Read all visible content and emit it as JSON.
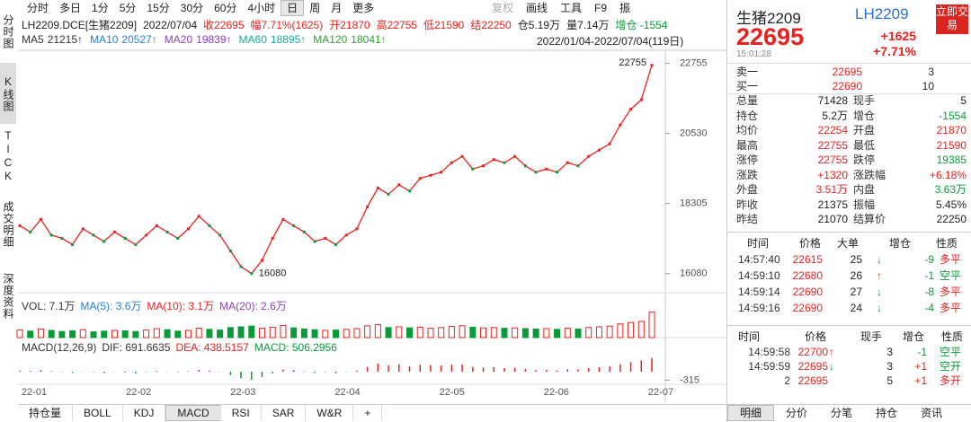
{
  "toolbar": {
    "tabs": [
      "分时",
      "多日",
      "1分",
      "5分",
      "15分",
      "30分",
      "60分",
      "4小时",
      "日",
      "周",
      "月",
      "更多"
    ],
    "active": 8,
    "right": [
      "复权",
      "画线",
      "工具",
      "F9",
      "振"
    ]
  },
  "side_tabs": [
    "分时图",
    "K线图",
    "TICK",
    "成交明细",
    "深度资料"
  ],
  "quote_line": [
    {
      "t": "LH2209.DCE[生猪2209]",
      "c": "#222"
    },
    {
      "t": "2022/07/04",
      "c": "#222"
    },
    {
      "t": "收22695",
      "c": "#e8231f"
    },
    {
      "t": "幅7.71%(1625)",
      "c": "#e8231f"
    },
    {
      "t": "开21870",
      "c": "#e8231f"
    },
    {
      "t": "高22755",
      "c": "#e8231f"
    },
    {
      "t": "低21590",
      "c": "#e8231f"
    },
    {
      "t": "结22250",
      "c": "#e8231f"
    },
    {
      "t": "仓5.19万",
      "c": "#222"
    },
    {
      "t": "量7.14万",
      "c": "#222"
    },
    {
      "t": "增仓 -1554",
      "c": "#0a9a3a"
    }
  ],
  "ma_line": [
    {
      "label": "MA5",
      "value": "21215↑",
      "color": "#333"
    },
    {
      "label": "MA10",
      "value": "20527↑",
      "color": "#2a7fd4"
    },
    {
      "label": "MA20",
      "value": "19839↑",
      "color": "#8a3fc0"
    },
    {
      "label": "MA60",
      "value": "18895↑",
      "color": "#1aa89a"
    },
    {
      "label": "MA120",
      "value": "18041↑",
      "color": "#3a9a3a"
    }
  ],
  "date_range": "2022/01/04-2022/07/04(119日)",
  "kline": {
    "ylim": [
      15700,
      23000
    ],
    "yticks": [
      22755,
      20530,
      18305,
      16080
    ],
    "high_label": "22755",
    "low_label": "16080",
    "closes": [
      17600,
      17400,
      17800,
      17300,
      17200,
      17000,
      17500,
      17300,
      17100,
      17400,
      17200,
      17000,
      17300,
      17600,
      17400,
      17200,
      17500,
      17900,
      17600,
      17300,
      16800,
      16300,
      16080,
      16500,
      17200,
      17800,
      17600,
      17400,
      17100,
      17200,
      17000,
      17300,
      17500,
      18200,
      18800,
      18600,
      18900,
      18700,
      19100,
      19200,
      19300,
      19600,
      19800,
      19400,
      19500,
      19700,
      19600,
      19800,
      19500,
      19300,
      19400,
      19300,
      19600,
      19500,
      19800,
      20000,
      20200,
      20800,
      21300,
      21600,
      22695
    ],
    "volume": [
      2.1,
      1.8,
      2.4,
      2.0,
      1.7,
      1.9,
      2.2,
      1.6,
      1.8,
      2.0,
      1.9,
      1.7,
      2.1,
      2.5,
      2.2,
      1.8,
      2.0,
      2.6,
      2.3,
      2.1,
      2.8,
      3.0,
      3.2,
      2.6,
      2.9,
      3.4,
      2.7,
      2.4,
      2.2,
      2.0,
      2.1,
      2.3,
      2.5,
      3.3,
      3.6,
      2.8,
      3.0,
      2.7,
      2.9,
      2.6,
      2.8,
      3.1,
      3.3,
      2.9,
      2.7,
      2.8,
      2.6,
      2.7,
      2.5,
      2.4,
      2.5,
      2.3,
      2.6,
      2.4,
      2.8,
      3.0,
      3.2,
      3.8,
      4.2,
      4.5,
      7.1
    ],
    "vol_ylim": [
      0,
      7.5
    ],
    "macd": [
      40,
      30,
      60,
      20,
      -10,
      -40,
      10,
      -20,
      -50,
      -10,
      -30,
      -60,
      -20,
      30,
      10,
      -20,
      20,
      70,
      40,
      -10,
      -120,
      -250,
      -300,
      -200,
      -60,
      80,
      60,
      20,
      -40,
      -20,
      -60,
      -10,
      40,
      180,
      300,
      240,
      280,
      200,
      260,
      250,
      230,
      260,
      270,
      180,
      160,
      170,
      140,
      150,
      100,
      60,
      70,
      50,
      90,
      80,
      130,
      170,
      200,
      280,
      360,
      420,
      506.2956
    ],
    "macd_ylim": [
      -400,
      600
    ],
    "macd_tick": -315,
    "x_labels": [
      "22-01",
      "22-02",
      "22-03",
      "22-04",
      "22-05",
      "22-06",
      "22-07"
    ]
  },
  "vol_line": [
    {
      "t": "VOL: 7.1万",
      "c": "#333"
    },
    {
      "t": "MA(5): 3.6万",
      "c": "#2a7fd4"
    },
    {
      "t": "MA(10): 3.1万",
      "c": "#e8231f"
    },
    {
      "t": "MA(20): 2.6万",
      "c": "#8a3fc0"
    }
  ],
  "macd_line": [
    {
      "t": "MACD(12,26,9)",
      "c": "#333"
    },
    {
      "t": "DIF: 691.6635",
      "c": "#333"
    },
    {
      "t": "DEA: 438.5157",
      "c": "#e8231f"
    },
    {
      "t": "MACD: 506.2956",
      "c": "#0a9a3a"
    }
  ],
  "bottom_tabs": {
    "items": [
      "持仓量",
      "BOLL",
      "KDJ",
      "MACD",
      "RSI",
      "SAR",
      "W&R",
      "+"
    ],
    "active": 3
  },
  "quote": {
    "name": "生猪2209",
    "code": "LH2209",
    "button": "立即交易",
    "last": "22695",
    "change": "+1625",
    "pct": "+7.71%",
    "time": "15:01:28"
  },
  "book": [
    [
      "卖一",
      "22695",
      "3"
    ],
    [
      "买一",
      "22690",
      "10"
    ]
  ],
  "stats": [
    [
      {
        "t": "总量"
      },
      {
        "t": "71428",
        "c": "#222"
      },
      {
        "t": "现手"
      },
      {
        "t": "5",
        "c": "#222"
      }
    ],
    [
      {
        "t": "持仓"
      },
      {
        "t": "5.2万",
        "c": "#222"
      },
      {
        "t": "增仓"
      },
      {
        "t": "-1554",
        "c": "#0a9a3a"
      }
    ],
    [
      {
        "t": "均价"
      },
      {
        "t": "22254",
        "c": "#e8231f"
      },
      {
        "t": "开盘"
      },
      {
        "t": "21870",
        "c": "#e8231f"
      }
    ],
    [
      {
        "t": "最高"
      },
      {
        "t": "22755",
        "c": "#e8231f"
      },
      {
        "t": "最低"
      },
      {
        "t": "21590",
        "c": "#e8231f"
      }
    ],
    [
      {
        "t": "涨停"
      },
      {
        "t": "22755",
        "c": "#e8231f"
      },
      {
        "t": "跌停"
      },
      {
        "t": "19385",
        "c": "#0a9a3a"
      }
    ],
    [
      {
        "t": "涨跌"
      },
      {
        "t": "+1320",
        "c": "#e8231f"
      },
      {
        "t": "涨跌幅"
      },
      {
        "t": "+6.18%",
        "c": "#e8231f"
      }
    ],
    [
      {
        "t": "外盘"
      },
      {
        "t": "3.51万",
        "c": "#e8231f"
      },
      {
        "t": "内盘"
      },
      {
        "t": "3.63万",
        "c": "#0a9a3a"
      }
    ],
    [
      {
        "t": "昨收"
      },
      {
        "t": "21375",
        "c": "#222"
      },
      {
        "t": "振幅"
      },
      {
        "t": "5.45%",
        "c": "#222"
      }
    ],
    [
      {
        "t": "昨结"
      },
      {
        "t": "21070",
        "c": "#222"
      },
      {
        "t": "结算价"
      },
      {
        "t": "22250",
        "c": "#222"
      }
    ]
  ],
  "ticks1": {
    "headers": [
      "时间",
      "价格",
      "大单",
      "增仓",
      "性质"
    ],
    "rows": [
      [
        "14:57:40",
        "22615",
        "25",
        "↓",
        "-9",
        "多平"
      ],
      [
        "14:59:10",
        "22680",
        "26",
        "↑",
        "-1",
        "空平"
      ],
      [
        "14:59:14",
        "22690",
        "27",
        "↓",
        "-8",
        "多平"
      ],
      [
        "14:59:16",
        "22690",
        "24",
        "↓",
        "-4",
        "多平"
      ]
    ]
  },
  "ticks2": {
    "headers": [
      "时间",
      "价格",
      "现手",
      "增仓",
      "性质"
    ],
    "rows": [
      [
        "14:59:58",
        "22700",
        "↑",
        "3",
        "-1",
        "空平"
      ],
      [
        "14:59:59",
        "22695",
        "↓",
        "3",
        "+1",
        "空开"
      ],
      [
        "2",
        "22695",
        "",
        "5",
        "+1",
        "多开"
      ]
    ]
  },
  "right_tabs": {
    "items": [
      "明细",
      "分价",
      "分笔",
      "持仓",
      "资讯"
    ],
    "active": 0
  }
}
